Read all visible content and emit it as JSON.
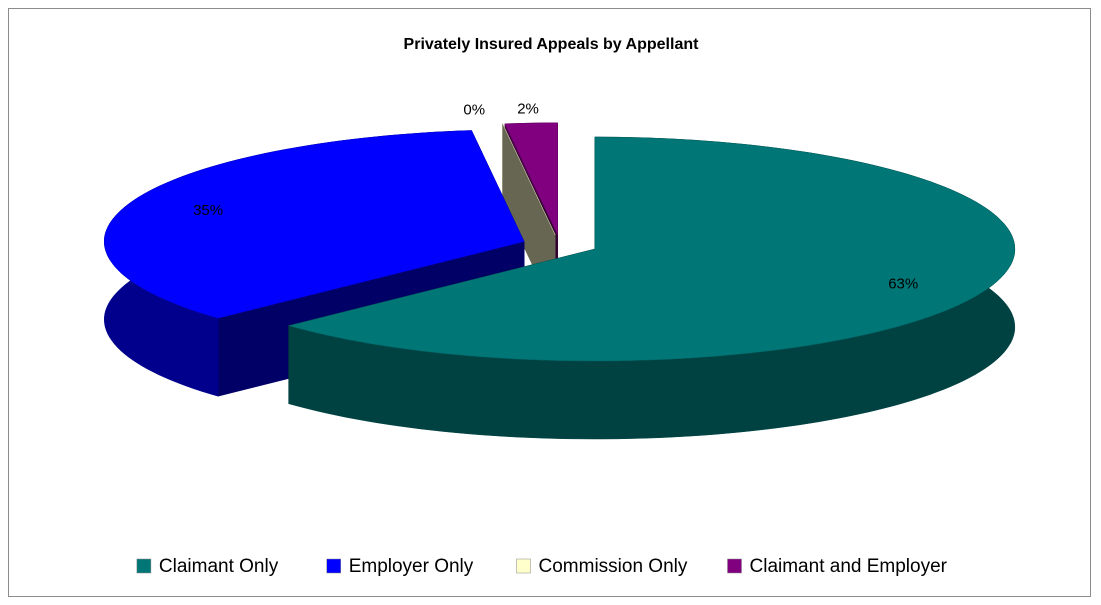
{
  "chart_data": {
    "type": "pie3d",
    "title": "Privately Insured Appeals by Appellant",
    "categories": [
      "Claimant Only",
      "Employer Only",
      "Commission Only",
      "Claimant and Employer"
    ],
    "values": [
      63,
      35,
      0,
      2
    ],
    "value_labels": [
      "63%",
      "35%",
      "0%",
      "2%"
    ],
    "colors": [
      "#007676",
      "#0000ff",
      "#ffffcc",
      "#800080"
    ],
    "legend": "bottom"
  }
}
